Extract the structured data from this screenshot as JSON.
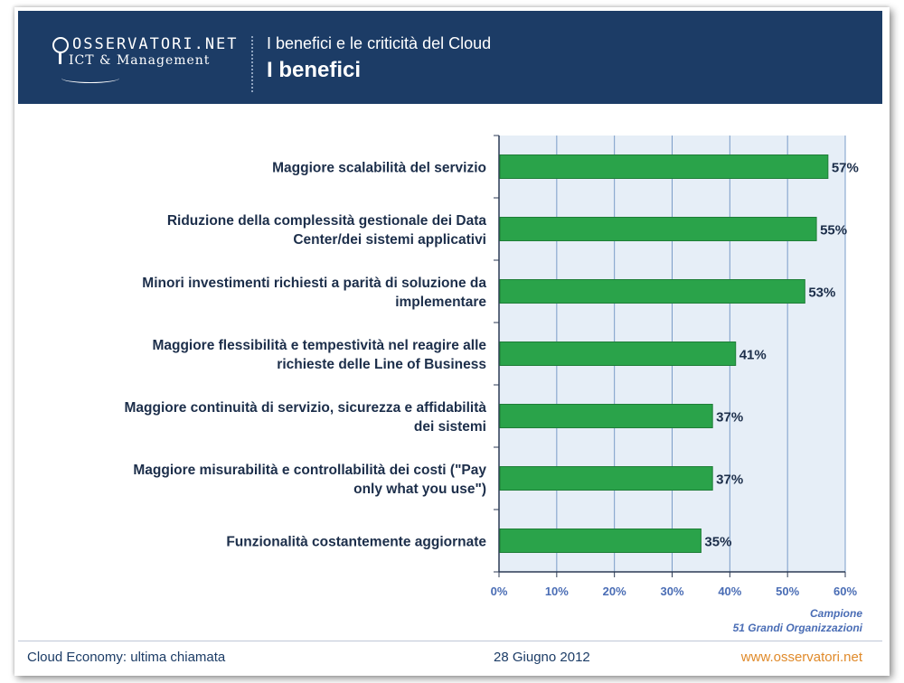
{
  "header": {
    "logo_text": "OSSERVATORI.NET",
    "logo_subtext": "ICT & Management",
    "subtitle": "I benefici e le criticità del Cloud",
    "title": "I benefici"
  },
  "chart_data": {
    "type": "bar",
    "orientation": "horizontal",
    "title": "I benefici",
    "categories": [
      [
        "Maggiore scalabilità del servizio"
      ],
      [
        "Riduzione della complessità gestionale dei Data",
        "Center/dei sistemi applicativi"
      ],
      [
        "Minori investimenti richiesti a parità di soluzione da",
        "implementare"
      ],
      [
        "Maggiore flessibilità e tempestività nel reagire alle",
        "richieste delle Line of Business"
      ],
      [
        "Maggiore continuità di servizio, sicurezza e affidabilità",
        "dei sistemi"
      ],
      [
        "Maggiore misurabilità e controllabilità dei costi (\"Pay",
        "only what you use\")"
      ],
      [
        "Funzionalità costantemente aggiornate"
      ]
    ],
    "values": [
      57,
      55,
      53,
      41,
      37,
      37,
      35
    ],
    "value_labels": [
      "57%",
      "55%",
      "53%",
      "41%",
      "37%",
      "37%",
      "35%"
    ],
    "xlim": [
      0,
      60
    ],
    "xticks": [
      "0%",
      "10%",
      "20%",
      "30%",
      "40%",
      "50%",
      "60%"
    ],
    "grid": true,
    "colors": {
      "bar": "#2aa34a",
      "bar_edge": "#1e7d37",
      "plot_bg": "#e6eef7",
      "grid": "#7a9cc8",
      "axis": "#2b3a55",
      "tick_label": "#4a6db5",
      "category_label": "#1c2e4a",
      "value_label": "#1c2e4a"
    }
  },
  "sample_note": {
    "line1": "Campione",
    "line2": "51 Grandi Organizzazioni"
  },
  "footer": {
    "left": "Cloud Economy: ultima chiamata",
    "center": "28 Giugno 2012",
    "right": "www.osservatori.net"
  },
  "colors": {
    "header_bg": "#1c3c66",
    "footer_link": "#e08a2a"
  }
}
